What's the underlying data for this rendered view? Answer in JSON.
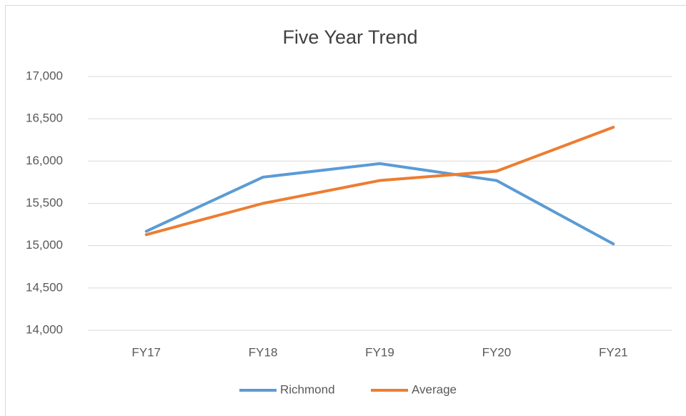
{
  "chart_data": {
    "type": "line",
    "title": "Five Year Trend",
    "categories": [
      "FY17",
      "FY18",
      "FY19",
      "FY20",
      "FY21"
    ],
    "series": [
      {
        "name": "Richmond",
        "color": "#5b9bd5",
        "values": [
          15170,
          15810,
          15970,
          15770,
          15020
        ]
      },
      {
        "name": "Average",
        "color": "#ed7d31",
        "values": [
          15130,
          15500,
          15770,
          15880,
          16400
        ]
      }
    ],
    "ylim": [
      14000,
      17000
    ],
    "yticks": [
      {
        "value": 14000,
        "label": "14,000"
      },
      {
        "value": 14500,
        "label": "14,500"
      },
      {
        "value": 15000,
        "label": "15,000"
      },
      {
        "value": 15500,
        "label": "15,500"
      },
      {
        "value": 16000,
        "label": "16,000"
      },
      {
        "value": 16500,
        "label": "16,500"
      },
      {
        "value": 17000,
        "label": "17,000"
      }
    ],
    "grid": true,
    "legend": "bottom"
  }
}
